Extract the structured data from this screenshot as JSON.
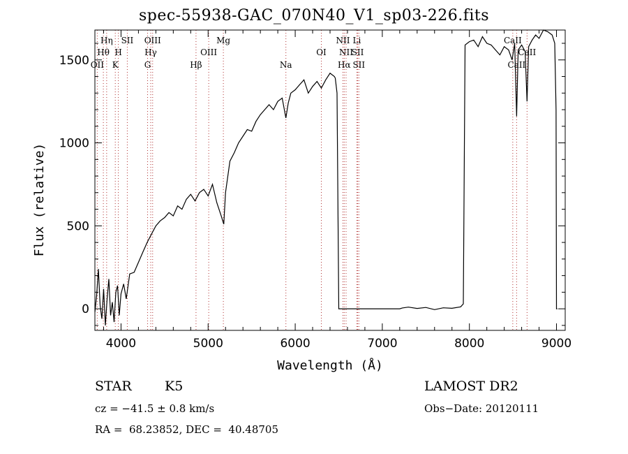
{
  "chart_data": {
    "type": "line",
    "title": "spec-55938-GAC_070N40_V1_sp03-226.fits",
    "xlabel": "Wavelength (Å)",
    "ylabel": "Flux (relative)",
    "xlim": [
      3700,
      9100
    ],
    "ylim": [
      -130,
      1680
    ],
    "xticks": [
      4000,
      5000,
      6000,
      7000,
      8000,
      9000
    ],
    "xtick_labels": [
      "4000",
      "5000",
      "6000",
      "7000",
      "8000",
      "9000"
    ],
    "yticks": [
      0,
      500,
      1000,
      1500
    ],
    "ytick_labels": [
      "0",
      "500",
      "1000",
      "1500"
    ],
    "grid": false,
    "line_color": "#000000",
    "marker_line_color": "#b03030",
    "marker_label_color": "#000000",
    "series": [
      {
        "x": [
          3700,
          3720,
          3740,
          3760,
          3780,
          3800,
          3820,
          3840,
          3860,
          3880,
          3900,
          3920,
          3940,
          3960,
          3980,
          4000,
          4030,
          4060,
          4100,
          4150,
          4200,
          4250,
          4300,
          4350,
          4400,
          4450,
          4500,
          4550,
          4600,
          4650,
          4700,
          4750,
          4800,
          4850,
          4900,
          4950,
          5000,
          5050,
          5100,
          5150,
          5180,
          5200,
          5250,
          5300,
          5350,
          5400,
          5450,
          5500,
          5550,
          5600,
          5650,
          5700,
          5750,
          5800,
          5850,
          5893,
          5920,
          5950,
          6000,
          6050,
          6100,
          6150,
          6200,
          6250,
          6300,
          6350,
          6400,
          6450,
          6460,
          6480,
          6500,
          6520,
          6550,
          6600,
          6700,
          6800,
          6900,
          7000,
          7100,
          7200,
          7230,
          7300,
          7400,
          7500,
          7600,
          7700,
          7800,
          7900,
          7930,
          7950,
          8000,
          8050,
          8100,
          8150,
          8200,
          8250,
          8300,
          8350,
          8400,
          8450,
          8490,
          8520,
          8542,
          8560,
          8600,
          8640,
          8662,
          8680,
          8720,
          8760,
          8800,
          8850,
          8900,
          8950,
          8980,
          8995,
          9000,
          9010
        ],
        "y": [
          -20,
          80,
          240,
          20,
          -60,
          120,
          -100,
          60,
          180,
          -40,
          40,
          -80,
          100,
          140,
          -40,
          90,
          150,
          60,
          210,
          220,
          280,
          340,
          400,
          450,
          500,
          530,
          550,
          580,
          560,
          620,
          600,
          660,
          690,
          650,
          700,
          720,
          680,
          750,
          640,
          560,
          510,
          700,
          890,
          940,
          1000,
          1040,
          1080,
          1070,
          1130,
          1170,
          1200,
          1230,
          1200,
          1250,
          1270,
          1150,
          1240,
          1300,
          1320,
          1350,
          1380,
          1300,
          1340,
          1370,
          1330,
          1380,
          1420,
          1400,
          1390,
          1300,
          0,
          0,
          0,
          0,
          0,
          0,
          0,
          0,
          0,
          0,
          5,
          10,
          2,
          8,
          -5,
          6,
          3,
          12,
          30,
          1590,
          1610,
          1620,
          1580,
          1640,
          1600,
          1590,
          1560,
          1530,
          1580,
          1560,
          1500,
          1600,
          1160,
          1560,
          1590,
          1550,
          1250,
          1580,
          1620,
          1650,
          1630,
          1680,
          1670,
          1650,
          1600,
          1200,
          0,
          0
        ]
      }
    ],
    "markers": [
      {
        "label": "Hη",
        "wave": 3835,
        "row": 0
      },
      {
        "label": "Hθ",
        "wave": 3797,
        "row": 1
      },
      {
        "label": "OII",
        "wave": 3727,
        "row": 2
      },
      {
        "label": "SII",
        "wave": 4072,
        "row": 0
      },
      {
        "label": "H",
        "wave": 3969,
        "row": 1
      },
      {
        "label": "K",
        "wave": 3934,
        "row": 2
      },
      {
        "label": "OIII",
        "wave": 4363,
        "row": 0
      },
      {
        "label": "Hγ",
        "wave": 4341,
        "row": 1
      },
      {
        "label": "G",
        "wave": 4305,
        "row": 2
      },
      {
        "label": "Mg",
        "wave": 5175,
        "row": 0
      },
      {
        "label": "OIII",
        "wave": 5007,
        "row": 1
      },
      {
        "label": "Hβ",
        "wave": 4861,
        "row": 2
      },
      {
        "label": "Na",
        "wave": 5893,
        "row": 2
      },
      {
        "label": "NII",
        "wave": 6548,
        "row": 0
      },
      {
        "label": "Li",
        "wave": 6708,
        "row": 0
      },
      {
        "label": "OI",
        "wave": 6300,
        "row": 1
      },
      {
        "label": "NII",
        "wave": 6584,
        "row": 1
      },
      {
        "label": "SII",
        "wave": 6717,
        "row": 1
      },
      {
        "label": "Hα",
        "wave": 6563,
        "row": 2
      },
      {
        "label": "SII",
        "wave": 6731,
        "row": 2
      },
      {
        "label": "CaII",
        "wave": 8498,
        "row": 0
      },
      {
        "label": "CaII",
        "wave": 8662,
        "row": 1
      },
      {
        "label": "CaII",
        "wave": 8542,
        "row": 2
      }
    ]
  },
  "info": {
    "object_type": "STAR",
    "subclass": "K5",
    "survey": "LAMOST DR2",
    "cz": "cz = −41.5 ± 0.8 km/s",
    "obs_date": "Obs−Date: 20120111",
    "coords": "RA =  68.23852, DEC =  40.48705"
  }
}
